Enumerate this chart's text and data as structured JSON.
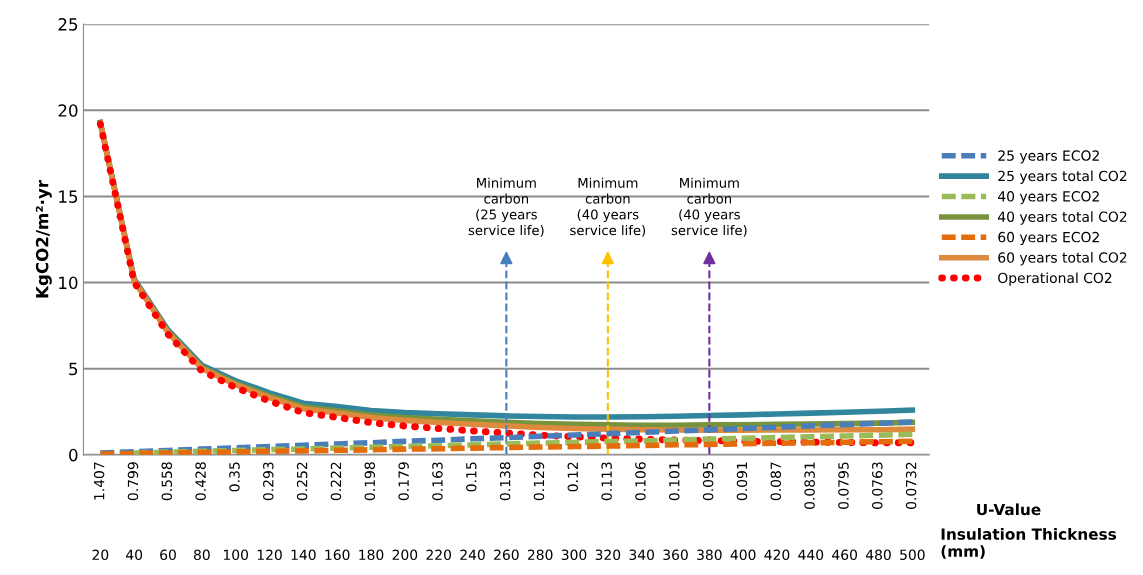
{
  "chart_data": {
    "type": "line",
    "ylabel": "KgCO2/m²·yr",
    "xlabel": "Insulation Thickness (mm)",
    "x2label": "U-Value",
    "categories": [
      "20",
      "40",
      "60",
      "80",
      "100",
      "120",
      "140",
      "160",
      "180",
      "200",
      "220",
      "240",
      "260",
      "280",
      "300",
      "320",
      "340",
      "360",
      "380",
      "400",
      "420",
      "440",
      "460",
      "480",
      "500"
    ],
    "annotations": [
      "1.407",
      "0.799",
      "0.558",
      "0.428",
      "0.35",
      "0.293",
      "0.252",
      "0.222",
      "0.198",
      "0.179",
      "0.163",
      "0.15",
      "0.138",
      "0.129",
      "0.12",
      "0.113",
      "0.106",
      "0.101",
      "0.095",
      "0.091",
      "0.087",
      "0.0831",
      "0.0795",
      "0.0763",
      "0.0732"
    ],
    "ylim": [
      0,
      25
    ],
    "yticks": [
      0,
      5,
      10,
      15,
      20,
      25
    ],
    "grid": "y",
    "legend": "right",
    "marker": "none",
    "series": [
      {
        "name": "25 years ECO2",
        "color": "#4a7ebb",
        "line_style": "dashed",
        "values": [
          0.1,
          0.18,
          0.25,
          0.33,
          0.4,
          0.48,
          0.55,
          0.63,
          0.7,
          0.78,
          0.85,
          0.93,
          1.0,
          1.08,
          1.15,
          1.23,
          1.3,
          1.38,
          1.45,
          1.53,
          1.6,
          1.68,
          1.75,
          1.83,
          1.9
        ]
      },
      {
        "name": "25 years total CO2",
        "color": "#31859c",
        "line_style": "solid",
        "values": [
          19.3,
          10.2,
          7.25,
          5.2,
          4.3,
          3.6,
          3.0,
          2.8,
          2.57,
          2.45,
          2.38,
          2.32,
          2.26,
          2.22,
          2.2,
          2.2,
          2.21,
          2.24,
          2.28,
          2.32,
          2.37,
          2.42,
          2.47,
          2.53,
          2.6
        ]
      },
      {
        "name": "40 years ECO2",
        "color": "#9bbb59",
        "line_style": "dashed",
        "values": [
          null,
          0.11,
          0.16,
          0.21,
          0.25,
          0.3,
          0.34,
          0.39,
          0.44,
          0.49,
          0.53,
          0.58,
          0.63,
          0.68,
          0.72,
          0.77,
          0.81,
          0.86,
          0.91,
          0.96,
          1.0,
          1.05,
          1.09,
          1.14,
          1.19
        ]
      },
      {
        "name": "40 years total CO2",
        "color": "#77933c",
        "line_style": "solid",
        "values": [
          19.26,
          10.13,
          7.16,
          5.08,
          4.15,
          3.42,
          2.79,
          2.56,
          2.31,
          2.16,
          2.06,
          1.97,
          1.89,
          1.82,
          1.77,
          1.74,
          1.72,
          1.72,
          1.74,
          1.75,
          1.77,
          1.79,
          1.81,
          1.84,
          1.89
        ]
      },
      {
        "name": "60 years ECO2",
        "color": "#e46c0a",
        "line_style": "dashed",
        "values": [
          0.04,
          0.08,
          0.1,
          0.14,
          0.17,
          0.2,
          0.23,
          0.26,
          0.29,
          0.33,
          0.35,
          0.39,
          0.42,
          0.45,
          0.48,
          0.51,
          0.54,
          0.58,
          0.6,
          0.64,
          0.67,
          0.7,
          0.73,
          0.76,
          0.79
        ]
      },
      {
        "name": "60 years total CO2",
        "color": "#dd8a3e",
        "line_style": "solid",
        "values": [
          19.24,
          10.1,
          7.1,
          5.01,
          4.07,
          3.32,
          2.68,
          2.43,
          2.16,
          2.0,
          1.88,
          1.78,
          1.68,
          1.59,
          1.53,
          1.48,
          1.45,
          1.44,
          1.43,
          1.43,
          1.44,
          1.44,
          1.45,
          1.46,
          1.49
        ]
      },
      {
        "name": "Operational CO2",
        "color": "#ff0000",
        "line_style": "dotted",
        "values": [
          19.2,
          10.02,
          7.0,
          4.87,
          3.9,
          3.12,
          2.45,
          2.17,
          1.87,
          1.67,
          1.53,
          1.39,
          1.26,
          1.14,
          1.05,
          0.97,
          0.91,
          0.86,
          0.83,
          0.79,
          0.77,
          0.74,
          0.72,
          0.7,
          0.7
        ]
      }
    ],
    "ref_lines": [
      {
        "axis": "x",
        "value": "260",
        "label": "Minimum\ncarbon\n(25 years\nservice life)",
        "color": "#4a7ebb",
        "line_style": "dashed"
      },
      {
        "axis": "x",
        "value": "320",
        "label": "Minimum\ncarbon\n(40 years\nservice life)",
        "color": "#ffc000",
        "line_style": "dashed"
      },
      {
        "axis": "x",
        "value": "380",
        "label": "Minimum\ncarbon\n(40 years\nservice life)",
        "color": "#7030a0",
        "line_style": "dashed"
      }
    ]
  }
}
